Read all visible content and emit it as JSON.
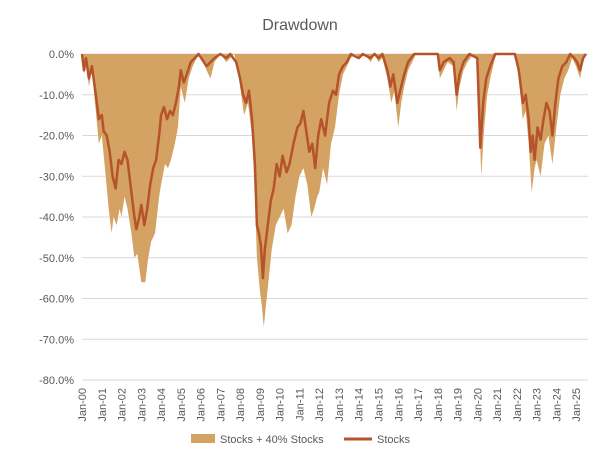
{
  "chart_data": {
    "type": "area",
    "title": "Drawdown",
    "xlabel": "",
    "ylabel": "",
    "ylim": [
      -80,
      0
    ],
    "y_ticks": [
      "0.0%",
      "-10.0%",
      "-20.0%",
      "-30.0%",
      "-40.0%",
      "-50.0%",
      "-60.0%",
      "-70.0%",
      "-80.0%"
    ],
    "y_tick_values": [
      0,
      -10,
      -20,
      -30,
      -40,
      -50,
      -60,
      -70,
      -80
    ],
    "x_ticks": [
      "Jan-00",
      "Jan-01",
      "Jan-02",
      "Jan-03",
      "Jan-04",
      "Jan-05",
      "Jan-06",
      "Jan-07",
      "Jan-08",
      "Jan-09",
      "Jan-10",
      "Jan-11",
      "Jan-12",
      "Jan-13",
      "Jan-14",
      "Jan-15",
      "Jan-16",
      "Jan-17",
      "Jan-18",
      "Jan-19",
      "Jan-20",
      "Jan-21",
      "Jan-22",
      "Jan-23",
      "Jan-24",
      "Jan-25"
    ],
    "x_tick_years": [
      2000,
      2001,
      2002,
      2003,
      2004,
      2005,
      2006,
      2007,
      2008,
      2009,
      2010,
      2011,
      2012,
      2013,
      2014,
      2015,
      2016,
      2017,
      2018,
      2019,
      2020,
      2021,
      2022,
      2023,
      2024,
      2025
    ],
    "x_range": [
      2000,
      2025.6
    ],
    "grid": true,
    "legend_position": "bottom",
    "series": [
      {
        "name": "Stocks + 40% Stocks",
        "kind": "area",
        "color": "#d4a262",
        "points": [
          [
            2000,
            0
          ],
          [
            2000.1,
            -5
          ],
          [
            2000.2,
            -2
          ],
          [
            2000.35,
            -8
          ],
          [
            2000.5,
            -4
          ],
          [
            2000.7,
            -14
          ],
          [
            2000.85,
            -22
          ],
          [
            2001.0,
            -20
          ],
          [
            2001.2,
            -30
          ],
          [
            2001.35,
            -38
          ],
          [
            2001.5,
            -44
          ],
          [
            2001.6,
            -40
          ],
          [
            2001.75,
            -42
          ],
          [
            2001.9,
            -38
          ],
          [
            2002.0,
            -40
          ],
          [
            2002.15,
            -35
          ],
          [
            2002.3,
            -38
          ],
          [
            2002.5,
            -44
          ],
          [
            2002.65,
            -50
          ],
          [
            2002.8,
            -49
          ],
          [
            2003.0,
            -56
          ],
          [
            2003.2,
            -56
          ],
          [
            2003.35,
            -50
          ],
          [
            2003.5,
            -46
          ],
          [
            2003.7,
            -44
          ],
          [
            2003.9,
            -35
          ],
          [
            2004.0,
            -32
          ],
          [
            2004.2,
            -27
          ],
          [
            2004.35,
            -28
          ],
          [
            2004.5,
            -26
          ],
          [
            2004.7,
            -22
          ],
          [
            2004.85,
            -18
          ],
          [
            2005.0,
            -8
          ],
          [
            2005.2,
            -12
          ],
          [
            2005.4,
            -6
          ],
          [
            2005.6,
            -3
          ],
          [
            2005.8,
            -1
          ],
          [
            2006.0,
            0
          ],
          [
            2006.3,
            -4
          ],
          [
            2006.5,
            -6
          ],
          [
            2006.7,
            -2
          ],
          [
            2007.0,
            0
          ],
          [
            2007.3,
            -2
          ],
          [
            2007.5,
            -1
          ],
          [
            2007.7,
            0
          ],
          [
            2007.85,
            -3
          ],
          [
            2008.0,
            -8
          ],
          [
            2008.2,
            -15
          ],
          [
            2008.4,
            -12
          ],
          [
            2008.6,
            -20
          ],
          [
            2008.75,
            -34
          ],
          [
            2008.85,
            -50
          ],
          [
            2009.0,
            -58
          ],
          [
            2009.1,
            -62
          ],
          [
            2009.2,
            -67
          ],
          [
            2009.3,
            -62
          ],
          [
            2009.45,
            -55
          ],
          [
            2009.6,
            -48
          ],
          [
            2009.8,
            -42
          ],
          [
            2010.0,
            -40
          ],
          [
            2010.2,
            -38
          ],
          [
            2010.4,
            -44
          ],
          [
            2010.6,
            -42
          ],
          [
            2010.8,
            -35
          ],
          [
            2011.0,
            -30
          ],
          [
            2011.2,
            -28
          ],
          [
            2011.4,
            -32
          ],
          [
            2011.6,
            -40
          ],
          [
            2011.75,
            -38
          ],
          [
            2011.9,
            -35
          ],
          [
            2012.0,
            -34
          ],
          [
            2012.2,
            -28
          ],
          [
            2012.4,
            -32
          ],
          [
            2012.6,
            -22
          ],
          [
            2012.8,
            -18
          ],
          [
            2013.0,
            -10
          ],
          [
            2013.2,
            -5
          ],
          [
            2013.4,
            -3
          ],
          [
            2013.6,
            -1
          ],
          [
            2013.8,
            0
          ],
          [
            2014.1,
            -1
          ],
          [
            2014.3,
            0
          ],
          [
            2014.6,
            -2
          ],
          [
            2014.8,
            0
          ],
          [
            2015.0,
            -2
          ],
          [
            2015.2,
            -1
          ],
          [
            2015.45,
            -6
          ],
          [
            2015.65,
            -12
          ],
          [
            2015.8,
            -9
          ],
          [
            2016.0,
            -18
          ],
          [
            2016.15,
            -12
          ],
          [
            2016.3,
            -8
          ],
          [
            2016.5,
            -4
          ],
          [
            2016.7,
            -2
          ],
          [
            2016.9,
            0
          ],
          [
            2017.5,
            0
          ],
          [
            2018.0,
            0
          ],
          [
            2018.1,
            -6
          ],
          [
            2018.3,
            -4
          ],
          [
            2018.5,
            -2
          ],
          [
            2018.8,
            -3
          ],
          [
            2018.95,
            -14
          ],
          [
            2019.1,
            -8
          ],
          [
            2019.3,
            -4
          ],
          [
            2019.5,
            -2
          ],
          [
            2019.8,
            0
          ],
          [
            2020.0,
            -2
          ],
          [
            2020.2,
            -30
          ],
          [
            2020.35,
            -18
          ],
          [
            2020.5,
            -10
          ],
          [
            2020.7,
            -5
          ],
          [
            2020.9,
            -1
          ],
          [
            2021.0,
            0
          ],
          [
            2021.5,
            0
          ],
          [
            2021.9,
            0
          ],
          [
            2022.1,
            -6
          ],
          [
            2022.3,
            -16
          ],
          [
            2022.45,
            -14
          ],
          [
            2022.6,
            -22
          ],
          [
            2022.75,
            -34
          ],
          [
            2022.9,
            -28
          ],
          [
            2023.0,
            -26
          ],
          [
            2023.2,
            -30
          ],
          [
            2023.4,
            -22
          ],
          [
            2023.6,
            -20
          ],
          [
            2023.8,
            -27
          ],
          [
            2024.0,
            -18
          ],
          [
            2024.2,
            -10
          ],
          [
            2024.4,
            -6
          ],
          [
            2024.6,
            -4
          ],
          [
            2024.8,
            -1
          ],
          [
            2025.0,
            -3
          ],
          [
            2025.2,
            -6
          ],
          [
            2025.35,
            -2
          ],
          [
            2025.5,
            0
          ]
        ]
      },
      {
        "name": "Stocks",
        "kind": "line",
        "color": "#b5532a",
        "points": [
          [
            2000,
            0
          ],
          [
            2000.1,
            -4
          ],
          [
            2000.2,
            -1
          ],
          [
            2000.35,
            -6
          ],
          [
            2000.5,
            -3
          ],
          [
            2000.7,
            -10
          ],
          [
            2000.85,
            -16
          ],
          [
            2001.0,
            -15
          ],
          [
            2001.1,
            -19
          ],
          [
            2001.25,
            -20
          ],
          [
            2001.4,
            -24
          ],
          [
            2001.55,
            -30
          ],
          [
            2001.7,
            -33
          ],
          [
            2001.85,
            -26
          ],
          [
            2002.0,
            -27
          ],
          [
            2002.15,
            -24
          ],
          [
            2002.3,
            -26
          ],
          [
            2002.5,
            -34
          ],
          [
            2002.65,
            -40
          ],
          [
            2002.75,
            -43
          ],
          [
            2002.9,
            -40
          ],
          [
            2003.0,
            -37
          ],
          [
            2003.15,
            -42
          ],
          [
            2003.3,
            -38
          ],
          [
            2003.45,
            -32
          ],
          [
            2003.6,
            -28
          ],
          [
            2003.75,
            -26
          ],
          [
            2003.9,
            -20
          ],
          [
            2004.0,
            -15
          ],
          [
            2004.15,
            -13
          ],
          [
            2004.3,
            -16
          ],
          [
            2004.45,
            -14
          ],
          [
            2004.6,
            -15
          ],
          [
            2004.75,
            -12
          ],
          [
            2004.9,
            -8
          ],
          [
            2005.0,
            -4
          ],
          [
            2005.15,
            -7
          ],
          [
            2005.3,
            -5
          ],
          [
            2005.5,
            -2
          ],
          [
            2005.7,
            -1
          ],
          [
            2005.9,
            0
          ],
          [
            2006.3,
            -3
          ],
          [
            2006.5,
            -2
          ],
          [
            2006.7,
            -1
          ],
          [
            2007.0,
            0
          ],
          [
            2007.3,
            -1
          ],
          [
            2007.5,
            0
          ],
          [
            2007.8,
            -2
          ],
          [
            2008.0,
            -6
          ],
          [
            2008.15,
            -10
          ],
          [
            2008.3,
            -12
          ],
          [
            2008.45,
            -9
          ],
          [
            2008.6,
            -16
          ],
          [
            2008.75,
            -27
          ],
          [
            2008.85,
            -42
          ],
          [
            2008.95,
            -44
          ],
          [
            2009.05,
            -47
          ],
          [
            2009.15,
            -55
          ],
          [
            2009.25,
            -48
          ],
          [
            2009.4,
            -42
          ],
          [
            2009.55,
            -36
          ],
          [
            2009.7,
            -33
          ],
          [
            2009.85,
            -27
          ],
          [
            2010.0,
            -30
          ],
          [
            2010.15,
            -25
          ],
          [
            2010.35,
            -29
          ],
          [
            2010.5,
            -27
          ],
          [
            2010.7,
            -22
          ],
          [
            2010.9,
            -18
          ],
          [
            2011.05,
            -17
          ],
          [
            2011.2,
            -14
          ],
          [
            2011.35,
            -19
          ],
          [
            2011.5,
            -24
          ],
          [
            2011.65,
            -22
          ],
          [
            2011.8,
            -28
          ],
          [
            2011.95,
            -20
          ],
          [
            2012.1,
            -16
          ],
          [
            2012.3,
            -20
          ],
          [
            2012.5,
            -12
          ],
          [
            2012.7,
            -9
          ],
          [
            2012.85,
            -10
          ],
          [
            2013.0,
            -5
          ],
          [
            2013.2,
            -3
          ],
          [
            2013.4,
            -2
          ],
          [
            2013.6,
            0
          ],
          [
            2014.0,
            -1
          ],
          [
            2014.2,
            0
          ],
          [
            2014.6,
            -1
          ],
          [
            2014.8,
            0
          ],
          [
            2015.0,
            -1
          ],
          [
            2015.2,
            0
          ],
          [
            2015.45,
            -4
          ],
          [
            2015.6,
            -8
          ],
          [
            2015.75,
            -5
          ],
          [
            2015.95,
            -12
          ],
          [
            2016.1,
            -9
          ],
          [
            2016.3,
            -5
          ],
          [
            2016.5,
            -2
          ],
          [
            2016.8,
            0
          ],
          [
            2017.5,
            0
          ],
          [
            2018.0,
            0
          ],
          [
            2018.1,
            -4
          ],
          [
            2018.3,
            -2
          ],
          [
            2018.6,
            -1
          ],
          [
            2018.8,
            -2
          ],
          [
            2018.95,
            -10
          ],
          [
            2019.1,
            -5
          ],
          [
            2019.3,
            -2
          ],
          [
            2019.6,
            0
          ],
          [
            2020.0,
            -1
          ],
          [
            2020.15,
            -23
          ],
          [
            2020.3,
            -12
          ],
          [
            2020.45,
            -6
          ],
          [
            2020.65,
            -3
          ],
          [
            2020.9,
            0
          ],
          [
            2021.5,
            0
          ],
          [
            2021.9,
            0
          ],
          [
            2022.1,
            -4
          ],
          [
            2022.3,
            -12
          ],
          [
            2022.45,
            -10
          ],
          [
            2022.6,
            -16
          ],
          [
            2022.7,
            -24
          ],
          [
            2022.8,
            -20
          ],
          [
            2022.9,
            -26
          ],
          [
            2023.05,
            -18
          ],
          [
            2023.2,
            -21
          ],
          [
            2023.35,
            -16
          ],
          [
            2023.5,
            -12
          ],
          [
            2023.65,
            -14
          ],
          [
            2023.8,
            -20
          ],
          [
            2023.95,
            -12
          ],
          [
            2024.1,
            -6
          ],
          [
            2024.3,
            -3
          ],
          [
            2024.5,
            -2
          ],
          [
            2024.7,
            0
          ],
          [
            2024.9,
            -1
          ],
          [
            2025.05,
            -2
          ],
          [
            2025.2,
            -4
          ],
          [
            2025.35,
            -1
          ],
          [
            2025.5,
            0
          ]
        ]
      }
    ]
  }
}
